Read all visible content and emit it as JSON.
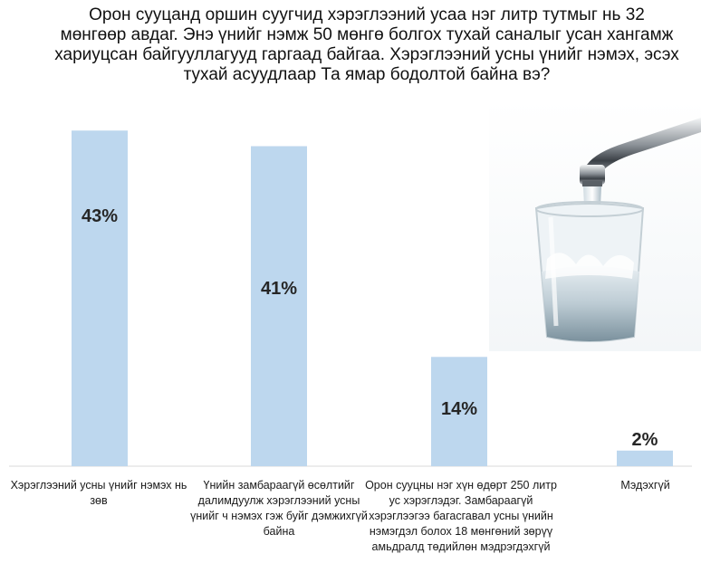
{
  "title": "Орон сууцанд оршин суугчид хэрэглээний усаа нэг литр тутмыг нь 32 мөнгөөр авдаг. Энэ үнийг нэмж 50 мөнгө болгох тухай саналыг усан хангамж хариуцсан байгууллагууд гаргаад байгаа. Хэрэглээний усны үнийг нэмэх, эсэх тухай асуудлаар Та ямар бодолтой байна вэ?",
  "chart_data": {
    "type": "bar",
    "categories": [
      "Хэрэглээний усны үнийг нэмэх нь зөв",
      "Үнийн замбараагүй өсөлтийг далимдуулж хэрэглээний усны үнийг ч нэмэх гэж буйг дэмжихгүй байна",
      "Орон сууцны нэг хүн өдөрт 250 литр ус хэрэглэдэг. Замбараагүй хэрэглээгээ багасгавал усны үнийн нэмэгдэл болох 18 мөнгөний зөрүү амьдралд төдийлөн мэдрэгдэхгүй",
      "Мэдэхгүй"
    ],
    "values": [
      43,
      41,
      14,
      2
    ],
    "value_labels": [
      "43%",
      "41%",
      "14%",
      "2%"
    ],
    "ylim": [
      0,
      45
    ],
    "bar_color": "#bdd7ee",
    "grid": false,
    "legend": "none"
  },
  "image": {
    "icon": "water-faucet-glass-photo"
  }
}
